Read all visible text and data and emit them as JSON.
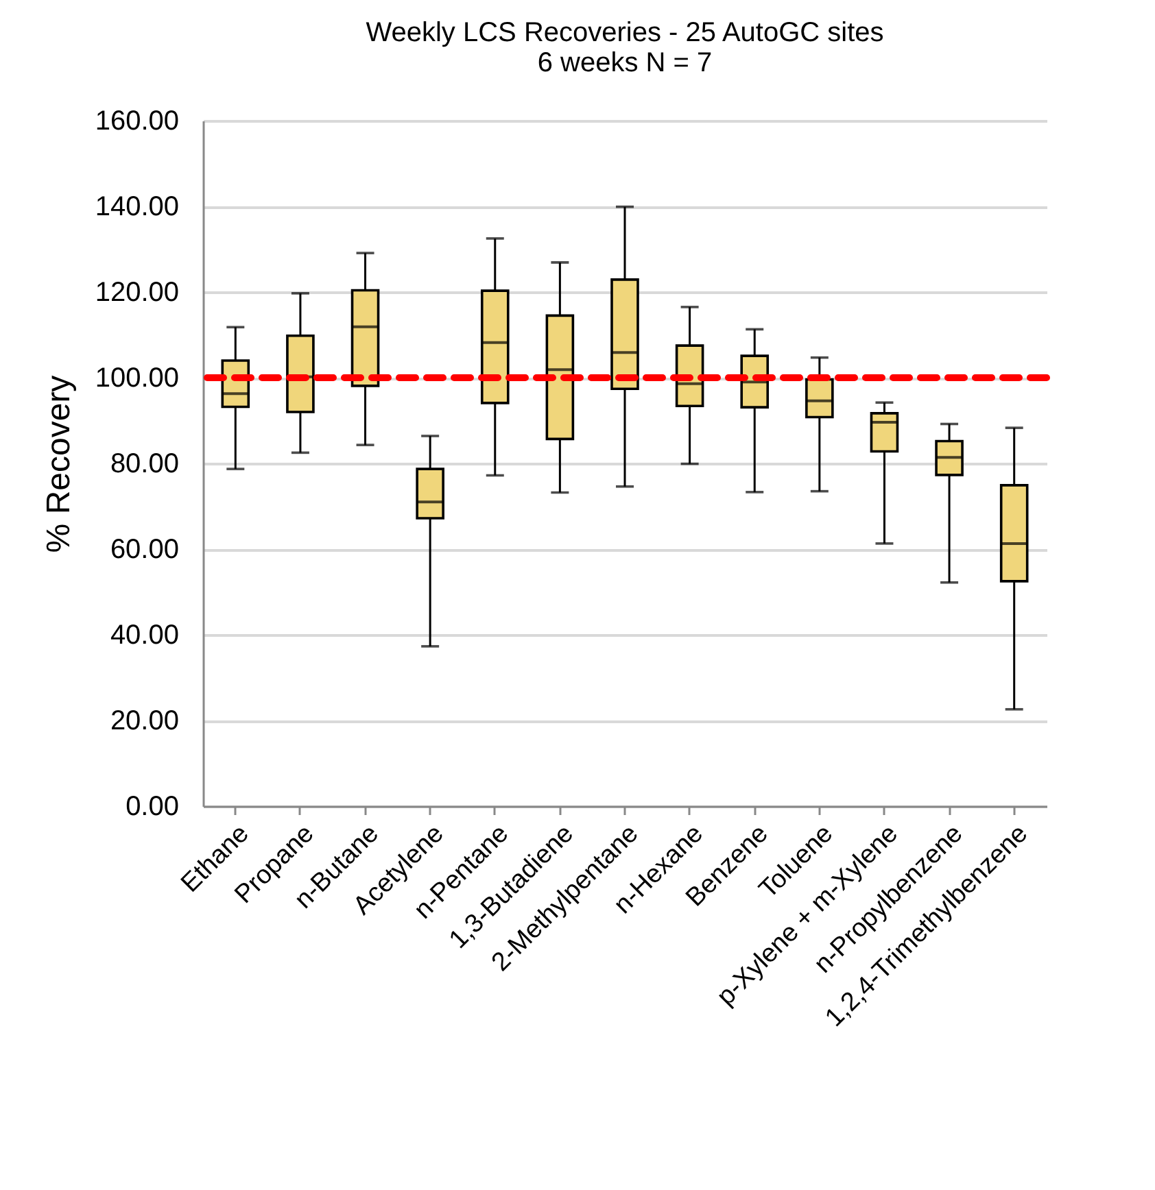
{
  "chart_data": {
    "type": "box",
    "title": "Weekly LCS Recoveries - 25 AutoGC sites",
    "subtitle": "6 weeks N = 7",
    "ylabel": "% Recovery",
    "categories": [
      "Ethane",
      "Propane",
      "n-Butane",
      "Acetylene",
      "n-Pentane",
      "1,3-Butadiene",
      "2-Methylpentane",
      "n-Hexane",
      "Benzene",
      "Toluene",
      "p-Xylene + m-Xylene",
      "n-Propylbenzene",
      "1,2,4-Trimethylbenzene"
    ],
    "series": [
      {
        "color": "#f0d67b",
        "boxes": [
          {
            "low": 78.7,
            "q1": 93.2,
            "median": 96.3,
            "q3": 104.0,
            "high": 111.8
          },
          {
            "low": 82.5,
            "q1": 92.0,
            "median": 100.2,
            "q3": 109.8,
            "high": 119.7
          },
          {
            "low": 84.3,
            "q1": 98.1,
            "median": 111.9,
            "q3": 120.4,
            "high": 129.1
          },
          {
            "low": 37.3,
            "q1": 67.2,
            "median": 71.0,
            "q3": 78.7,
            "high": 86.4
          },
          {
            "low": 77.2,
            "q1": 94.1,
            "median": 108.2,
            "q3": 120.3,
            "high": 132.5
          },
          {
            "low": 73.2,
            "q1": 85.7,
            "median": 101.9,
            "q3": 114.5,
            "high": 126.9
          },
          {
            "low": 74.6,
            "q1": 97.4,
            "median": 105.9,
            "q3": 122.9,
            "high": 139.9
          },
          {
            "low": 79.9,
            "q1": 93.4,
            "median": 98.6,
            "q3": 107.5,
            "high": 116.5
          },
          {
            "low": 73.3,
            "q1": 93.1,
            "median": 99.0,
            "q3": 105.1,
            "high": 111.3
          },
          {
            "low": 73.5,
            "q1": 90.8,
            "median": 94.6,
            "q3": 99.6,
            "high": 104.7
          },
          {
            "low": 61.3,
            "q1": 82.8,
            "median": 89.6,
            "q3": 91.7,
            "high": 94.2
          },
          {
            "low": 52.2,
            "q1": 77.3,
            "median": 81.4,
            "q3": 85.2,
            "high": 89.2
          },
          {
            "low": 22.6,
            "q1": 52.5,
            "median": 61.3,
            "q3": 74.9,
            "high": 88.3
          }
        ]
      }
    ],
    "ylim": [
      0,
      160
    ],
    "yticks": [
      {
        "value": 0,
        "label": "0.00"
      },
      {
        "value": 20,
        "label": "20.00"
      },
      {
        "value": 40,
        "label": "40.00"
      },
      {
        "value": 60,
        "label": "60.00"
      },
      {
        "value": 80,
        "label": "80.00"
      },
      {
        "value": 100,
        "label": "100.00"
      },
      {
        "value": 120,
        "label": "120.00"
      },
      {
        "value": 140,
        "label": "140.00"
      },
      {
        "value": 160,
        "label": "160.00"
      }
    ],
    "grid": "y",
    "ref_lines": [
      {
        "axis": "y",
        "value": 100,
        "color": "#ff0000",
        "line_style": "dashed"
      }
    ]
  }
}
